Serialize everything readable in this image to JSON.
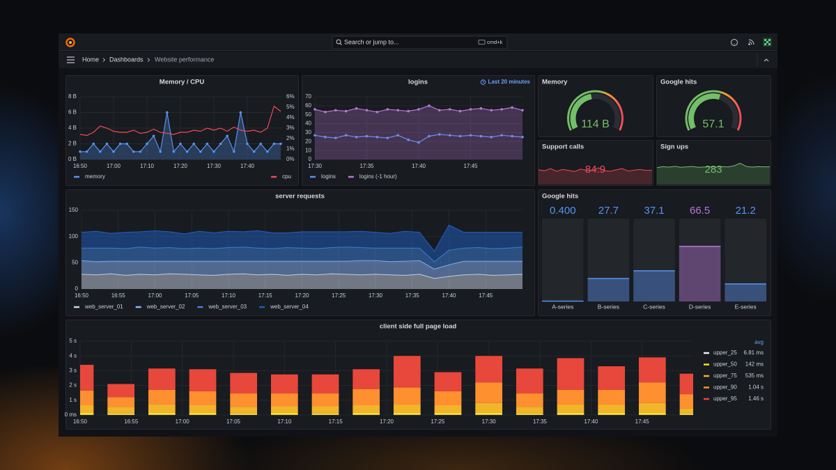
{
  "nav": {
    "search_placeholder": "Search or jump to...",
    "shortcut": "cmd+k",
    "breadcrumbs": [
      "Home",
      "Dashboards",
      "Website performance"
    ]
  },
  "chart_data": [
    {
      "type": "line",
      "title": "Memory / CPU",
      "x": [
        "16:50",
        "16:52",
        "16:54",
        "16:56",
        "16:58",
        "17:00",
        "17:02",
        "17:04",
        "17:06",
        "17:08",
        "17:10",
        "17:12",
        "17:14",
        "17:16",
        "17:18",
        "17:20",
        "17:22",
        "17:24",
        "17:26",
        "17:28",
        "17:30",
        "17:32",
        "17:34",
        "17:36",
        "17:38",
        "17:40",
        "17:42",
        "17:44",
        "17:46",
        "17:48",
        "17:50"
      ],
      "xlim": [
        "16:50",
        "17:50"
      ],
      "xticks": [
        "16:50",
        "17:00",
        "17:10",
        "17:20",
        "17:30",
        "17:40"
      ],
      "ylim": [
        0,
        8
      ],
      "yticks": [
        {
          "value": 0,
          "label": "0 B"
        },
        {
          "value": 2,
          "label": "2 B"
        },
        {
          "value": 4,
          "label": "4 B"
        },
        {
          "value": 6,
          "label": "6 B"
        },
        {
          "value": 8,
          "label": "8 B"
        }
      ],
      "y2lim": [
        0,
        6
      ],
      "y2ticks": [
        {
          "value": 0,
          "label": "0%"
        },
        {
          "value": 1,
          "label": "1%"
        },
        {
          "value": 2,
          "label": "2%"
        },
        {
          "value": 3,
          "label": "3%"
        },
        {
          "value": 4,
          "label": "4%"
        },
        {
          "value": 5,
          "label": "5%"
        },
        {
          "value": 6,
          "label": "6%"
        }
      ],
      "grid": true,
      "series": [
        {
          "name": "memory",
          "color": "#5794f2",
          "fill": true,
          "points": true,
          "values": [
            1,
            1,
            2,
            1,
            2,
            1,
            2,
            2,
            1,
            1,
            2,
            3,
            1,
            6,
            1,
            2,
            1,
            2,
            1,
            2,
            1,
            2,
            3,
            1,
            6,
            2,
            1,
            2,
            1,
            2,
            2
          ]
        },
        {
          "name": "cpu",
          "color": "#f2495c",
          "axis": "y2",
          "values": [
            2.4,
            2.3,
            2.6,
            3.2,
            3.0,
            2.7,
            2.6,
            2.6,
            2.8,
            2.5,
            2.6,
            2.9,
            2.6,
            2.5,
            2.4,
            2.6,
            2.6,
            2.8,
            2.7,
            3.0,
            2.8,
            3.0,
            2.7,
            3.1,
            2.8,
            2.7,
            2.8,
            2.6,
            3.0,
            5.1,
            4.6
          ]
        }
      ]
    },
    {
      "type": "line",
      "title": "logins",
      "time_range": "Last 20 minutes",
      "x": [
        "17:30",
        "17:31",
        "17:32",
        "17:33",
        "17:34",
        "17:35",
        "17:36",
        "17:37",
        "17:38",
        "17:39",
        "17:40",
        "17:41",
        "17:42",
        "17:43",
        "17:44",
        "17:45",
        "17:46",
        "17:47",
        "17:48",
        "17:49",
        "17:50"
      ],
      "xlim": [
        "17:30",
        "17:50"
      ],
      "xticks": [
        "17:30",
        "17:35",
        "17:40",
        "17:45"
      ],
      "ylim": [
        0,
        70
      ],
      "yticks": [
        0,
        10,
        20,
        30,
        40,
        50,
        60,
        70
      ],
      "grid": true,
      "series": [
        {
          "name": "logins",
          "color": "#5794f2",
          "points": true,
          "values": [
            27,
            25,
            24,
            27,
            25,
            26,
            25,
            24,
            27,
            22,
            19,
            26,
            28,
            27,
            26,
            27,
            26,
            25,
            27,
            26,
            25
          ]
        },
        {
          "name": "logins (-1 hour)",
          "color": "#b877d9",
          "fill": true,
          "points": true,
          "values": [
            56,
            53,
            55,
            54,
            57,
            55,
            53,
            56,
            55,
            54,
            56,
            60,
            55,
            56,
            54,
            56,
            57,
            55,
            56,
            58,
            55
          ]
        }
      ]
    },
    {
      "type": "gauge",
      "title": "Memory",
      "values": [
        114
      ],
      "value_labels": [
        "114 B"
      ],
      "ylim": [
        0,
        250
      ],
      "color": "#73bf69"
    },
    {
      "type": "gauge",
      "title": "Google hits",
      "values": [
        57.1
      ],
      "ylim": [
        0,
        100
      ],
      "color": "#73bf69"
    },
    {
      "type": "stat",
      "title": "Support calls",
      "value": 84.9,
      "color": "#f2495c",
      "ylim": [
        0,
        150
      ],
      "sparkline": [
        88,
        82,
        95,
        80,
        90,
        85,
        78,
        92,
        86,
        84,
        100,
        83,
        79,
        88,
        95,
        81,
        86,
        90,
        84,
        85
      ]
    },
    {
      "type": "stat",
      "title": "Sign ups",
      "value": 283,
      "color": "#73bf69",
      "ylim": [
        0,
        400
      ],
      "sparkline": [
        270,
        285,
        278,
        290,
        275,
        282,
        288,
        276,
        280,
        284,
        279,
        286,
        281,
        300,
        340,
        290,
        278,
        285,
        282,
        283
      ]
    },
    {
      "type": "stacked-area",
      "title": "server requests",
      "x": [
        "16:50",
        "16:52",
        "16:54",
        "16:56",
        "16:58",
        "17:00",
        "17:02",
        "17:04",
        "17:06",
        "17:08",
        "17:10",
        "17:12",
        "17:14",
        "17:16",
        "17:18",
        "17:20",
        "17:22",
        "17:24",
        "17:26",
        "17:28",
        "17:30",
        "17:32",
        "17:34",
        "17:36",
        "17:38",
        "17:40",
        "17:42",
        "17:44",
        "17:46",
        "17:48",
        "17:50"
      ],
      "xlim": [
        "16:50",
        "17:50"
      ],
      "xticks": [
        "16:50",
        "16:55",
        "17:00",
        "17:05",
        "17:10",
        "17:15",
        "17:20",
        "17:25",
        "17:30",
        "17:35",
        "17:40",
        "17:45"
      ],
      "ylim": [
        0,
        150
      ],
      "yticks": [
        0,
        50,
        100,
        150
      ],
      "grid": true,
      "series": [
        {
          "name": "web_server_01",
          "color": "#c9d6e8",
          "values": [
            28,
            27,
            29,
            26,
            28,
            27,
            29,
            28,
            27,
            26,
            28,
            29,
            27,
            28,
            26,
            28,
            27,
            29,
            28,
            27,
            28,
            27,
            26,
            28,
            20,
            24,
            27,
            28,
            26,
            27,
            28
          ]
        },
        {
          "name": "web_server_02",
          "color": "#8ab8ff",
          "values": [
            26,
            25,
            24,
            27,
            25,
            26,
            24,
            25,
            26,
            27,
            25,
            24,
            26,
            25,
            27,
            25,
            26,
            24,
            25,
            27,
            26,
            25,
            27,
            26,
            18,
            22,
            26,
            25,
            27,
            26,
            25
          ]
        },
        {
          "name": "web_server_03",
          "color": "#3d85e0",
          "values": [
            24,
            26,
            25,
            24,
            27,
            25,
            26,
            24,
            25,
            24,
            26,
            27,
            25,
            24,
            26,
            25,
            24,
            26,
            27,
            25,
            24,
            26,
            25,
            24,
            14,
            28,
            25,
            26,
            24,
            25,
            27
          ]
        },
        {
          "name": "web_server_04",
          "color": "#1f60c4",
          "values": [
            30,
            32,
            28,
            31,
            29,
            33,
            30,
            28,
            32,
            30,
            31,
            29,
            33,
            30,
            28,
            31,
            32,
            30,
            29,
            31,
            30,
            28,
            32,
            30,
            20,
            48,
            30,
            29,
            31,
            30,
            28
          ]
        }
      ]
    },
    {
      "type": "bar-gauge",
      "title": "Google hits",
      "categories": [
        "A-series",
        "B-series",
        "C-series",
        "D-series",
        "E-series"
      ],
      "values": [
        0.4,
        27.7,
        37.1,
        66.5,
        21.2
      ],
      "value_labels": [
        "0.400",
        "27.7",
        "37.1",
        "66.5",
        "21.2"
      ],
      "colors": [
        "#5794f2",
        "#5794f2",
        "#5794f2",
        "#b877d9",
        "#5794f2"
      ],
      "ylim": [
        0,
        100
      ]
    },
    {
      "type": "stacked-bar",
      "title": "client side full page load",
      "x": [
        "16:50",
        "16:54",
        "16:58",
        "17:02",
        "17:06",
        "17:10",
        "17:14",
        "17:18",
        "17:22",
        "17:26",
        "17:30",
        "17:34",
        "17:38",
        "17:42",
        "17:46",
        "17:50"
      ],
      "xlim": [
        "16:50",
        "17:50"
      ],
      "xticks": [
        "16:50",
        "16:55",
        "17:00",
        "17:05",
        "17:10",
        "17:15",
        "17:20",
        "17:25",
        "17:30",
        "17:35",
        "17:40",
        "17:45"
      ],
      "ylim": [
        0,
        5
      ],
      "yticks": [
        {
          "value": 0,
          "label": "0 ms"
        },
        {
          "value": 1,
          "label": "1 s"
        },
        {
          "value": 2,
          "label": "2 s"
        },
        {
          "value": 3,
          "label": "3 s"
        },
        {
          "value": 4,
          "label": "4 s"
        },
        {
          "value": 5,
          "label": "5 s"
        }
      ],
      "grid": true,
      "legend_header": "avg",
      "series": [
        {
          "name": "upper_25",
          "color": "#f0f0f0",
          "avg": "6.81 ms",
          "values": [
            0.01,
            0.01,
            0.01,
            0.01,
            0.01,
            0.01,
            0.01,
            0.01,
            0.01,
            0.01,
            0.01,
            0.01,
            0.01,
            0.01,
            0.01,
            0.01
          ]
        },
        {
          "name": "upper_50",
          "color": "#fade2a",
          "avg": "142 ms",
          "values": [
            0.15,
            0.1,
            0.15,
            0.15,
            0.1,
            0.15,
            0.1,
            0.15,
            0.15,
            0.15,
            0.15,
            0.1,
            0.15,
            0.15,
            0.15,
            0.1
          ]
        },
        {
          "name": "upper_75",
          "color": "#f2b42b",
          "avg": "535 ms",
          "values": [
            0.5,
            0.45,
            0.55,
            0.5,
            0.45,
            0.45,
            0.5,
            0.5,
            0.55,
            0.5,
            0.65,
            0.45,
            0.55,
            0.55,
            0.65,
            0.35
          ]
        },
        {
          "name": "upper_90",
          "color": "#ff9030",
          "avg": "1.04 s",
          "values": [
            1.0,
            0.65,
            1.0,
            0.95,
            0.9,
            0.85,
            0.85,
            1.1,
            1.15,
            0.95,
            1.4,
            0.9,
            1.0,
            1.0,
            1.4,
            0.95
          ]
        },
        {
          "name": "upper_95",
          "color": "#e8473b",
          "avg": "1.46 s",
          "values": [
            1.74,
            0.89,
            1.44,
            1.49,
            1.39,
            1.29,
            1.29,
            1.34,
            2.14,
            1.29,
            1.79,
            1.69,
            2.14,
            1.59,
            1.69,
            1.39
          ]
        }
      ]
    }
  ]
}
